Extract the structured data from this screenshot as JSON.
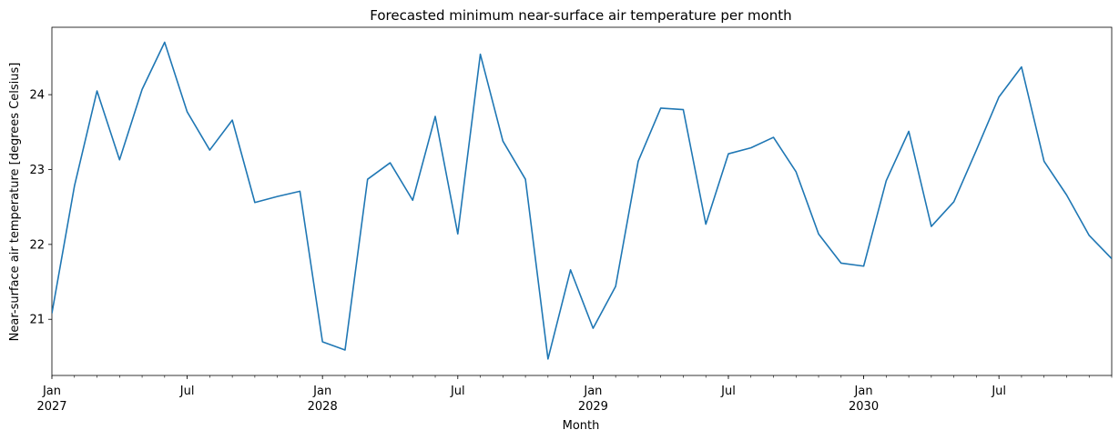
{
  "chart_data": {
    "type": "line",
    "title": "Forecasted minimum near-surface air temperature per month",
    "xlabel": "Month",
    "ylabel": "Near-surface air temperature [degrees Celsius]",
    "x": [
      "2027-01",
      "2027-02",
      "2027-03",
      "2027-04",
      "2027-05",
      "2027-06",
      "2027-07",
      "2027-08",
      "2027-09",
      "2027-10",
      "2027-11",
      "2027-12",
      "2028-01",
      "2028-02",
      "2028-03",
      "2028-04",
      "2028-05",
      "2028-06",
      "2028-07",
      "2028-08",
      "2028-09",
      "2028-10",
      "2028-11",
      "2028-12",
      "2029-01",
      "2029-02",
      "2029-03",
      "2029-04",
      "2029-05",
      "2029-06",
      "2029-07",
      "2029-08",
      "2029-09",
      "2029-10",
      "2029-11",
      "2029-12",
      "2030-01",
      "2030-02",
      "2030-03",
      "2030-04",
      "2030-05",
      "2030-06",
      "2030-07",
      "2030-08",
      "2030-09",
      "2030-10",
      "2030-11",
      "2030-12"
    ],
    "series": [
      {
        "color": "#1f77b4",
        "values": [
          21.08,
          22.78,
          24.05,
          23.13,
          24.07,
          24.7,
          23.77,
          23.26,
          23.66,
          22.56,
          22.64,
          22.71,
          20.7,
          20.59,
          22.87,
          23.09,
          22.59,
          23.71,
          22.14,
          24.54,
          23.38,
          22.87,
          20.47,
          21.66,
          20.88,
          21.44,
          23.11,
          23.82,
          23.8,
          22.27,
          23.21,
          23.29,
          23.43,
          22.97,
          22.14,
          21.75,
          21.71,
          22.85,
          23.51,
          22.24,
          22.57,
          23.26,
          23.97,
          24.37,
          23.11,
          22.66,
          22.12,
          21.81
        ]
      }
    ],
    "ylim": [
      20.25,
      24.9
    ],
    "yticks": [
      21,
      22,
      23,
      24
    ],
    "xticks": [
      {
        "month": "2027-01",
        "label": "Jan",
        "year": "2027"
      },
      {
        "month": "2027-07",
        "label": "Jul",
        "year": ""
      },
      {
        "month": "2028-01",
        "label": "Jan",
        "year": "2028"
      },
      {
        "month": "2028-07",
        "label": "Jul",
        "year": ""
      },
      {
        "month": "2029-01",
        "label": "Jan",
        "year": "2029"
      },
      {
        "month": "2029-07",
        "label": "Jul",
        "year": ""
      },
      {
        "month": "2030-01",
        "label": "Jan",
        "year": "2030"
      },
      {
        "month": "2030-07",
        "label": "Jul",
        "year": ""
      }
    ],
    "grid": false,
    "legend": "none"
  }
}
